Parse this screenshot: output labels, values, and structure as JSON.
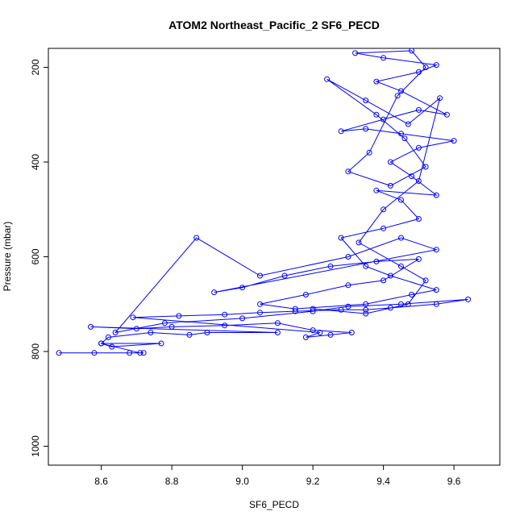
{
  "chart_data": {
    "type": "scatter",
    "title": "ATOM2 Northeast_Pacific_2 SF6_PECD",
    "xlabel": "SF6_PECD",
    "ylabel": "Pressure (mbar)",
    "xlim": [
      8.45,
      9.73
    ],
    "ylim": [
      1040,
      160
    ],
    "y_inverted": true,
    "x_ticks": [
      "8.6",
      "8.8",
      "9.0",
      "9.2",
      "9.4",
      "9.6"
    ],
    "y_ticks": [
      "200",
      "400",
      "600",
      "800",
      "1000"
    ],
    "grid": false,
    "series": [
      {
        "style": "points-and-lines",
        "color": "#0000ff",
        "points": [
          [
            8.48,
            803
          ],
          [
            8.58,
            803
          ],
          [
            8.68,
            803
          ],
          [
            8.72,
            803
          ],
          [
            8.71,
            803
          ],
          [
            8.6,
            783
          ],
          [
            8.77,
            783
          ],
          [
            8.63,
            790
          ],
          [
            8.6,
            783
          ],
          [
            8.62,
            770
          ],
          [
            8.74,
            760
          ],
          [
            8.85,
            765
          ],
          [
            8.9,
            760
          ],
          [
            9.1,
            760
          ],
          [
            8.57,
            748
          ],
          [
            8.7,
            752
          ],
          [
            8.8,
            748
          ],
          [
            8.95,
            745
          ],
          [
            9.1,
            740
          ],
          [
            9.2,
            755
          ],
          [
            9.31,
            760
          ],
          [
            9.25,
            765
          ],
          [
            9.18,
            770
          ],
          [
            9.22,
            760
          ],
          [
            8.69,
            728
          ],
          [
            8.82,
            725
          ],
          [
            8.95,
            722
          ],
          [
            9.05,
            718
          ],
          [
            9.15,
            715
          ],
          [
            9.28,
            712
          ],
          [
            9.35,
            712
          ],
          [
            9.42,
            708
          ],
          [
            9.55,
            700
          ],
          [
            9.64,
            690
          ],
          [
            9.45,
            700
          ],
          [
            9.3,
            705
          ],
          [
            9.2,
            715
          ],
          [
            9.0,
            730
          ],
          [
            8.78,
            740
          ],
          [
            8.64,
            760
          ],
          [
            8.87,
            560
          ],
          [
            9.05,
            640
          ],
          [
            9.3,
            600
          ],
          [
            9.45,
            560
          ],
          [
            9.55,
            585
          ],
          [
            8.92,
            675
          ],
          [
            9.0,
            665
          ],
          [
            9.12,
            640
          ],
          [
            9.25,
            620
          ],
          [
            9.38,
            610
          ],
          [
            9.5,
            605
          ],
          [
            9.4,
            650
          ],
          [
            9.3,
            660
          ],
          [
            9.18,
            680
          ],
          [
            9.05,
            700
          ],
          [
            9.15,
            710
          ],
          [
            9.35,
            700
          ],
          [
            9.48,
            680
          ],
          [
            9.55,
            670
          ],
          [
            9.42,
            640
          ],
          [
            9.35,
            620
          ],
          [
            9.28,
            560
          ],
          [
            9.4,
            540
          ],
          [
            9.5,
            520
          ],
          [
            9.45,
            480
          ],
          [
            9.38,
            460
          ],
          [
            9.55,
            470
          ],
          [
            9.48,
            430
          ],
          [
            9.42,
            400
          ],
          [
            9.5,
            370
          ],
          [
            9.6,
            355
          ],
          [
            9.45,
            340
          ],
          [
            9.35,
            330
          ],
          [
            9.28,
            335
          ],
          [
            9.4,
            310
          ],
          [
            9.5,
            290
          ],
          [
            9.58,
            300
          ],
          [
            9.45,
            250
          ],
          [
            9.38,
            230
          ],
          [
            9.5,
            210
          ],
          [
            9.55,
            195
          ],
          [
            9.4,
            180
          ],
          [
            9.32,
            170
          ],
          [
            9.48,
            165
          ],
          [
            9.52,
            200
          ],
          [
            9.44,
            260
          ],
          [
            9.36,
            380
          ],
          [
            9.3,
            420
          ],
          [
            9.42,
            450
          ],
          [
            9.52,
            410
          ],
          [
            9.46,
            350
          ],
          [
            9.38,
            300
          ],
          [
            9.24,
            225
          ],
          [
            9.35,
            270
          ],
          [
            9.47,
            320
          ],
          [
            9.56,
            265
          ],
          [
            9.5,
            440
          ],
          [
            9.4,
            500
          ],
          [
            9.33,
            570
          ],
          [
            9.45,
            620
          ],
          [
            9.52,
            650
          ],
          [
            9.47,
            700
          ],
          [
            9.35,
            720
          ],
          [
            9.2,
            710
          ]
        ]
      }
    ]
  }
}
